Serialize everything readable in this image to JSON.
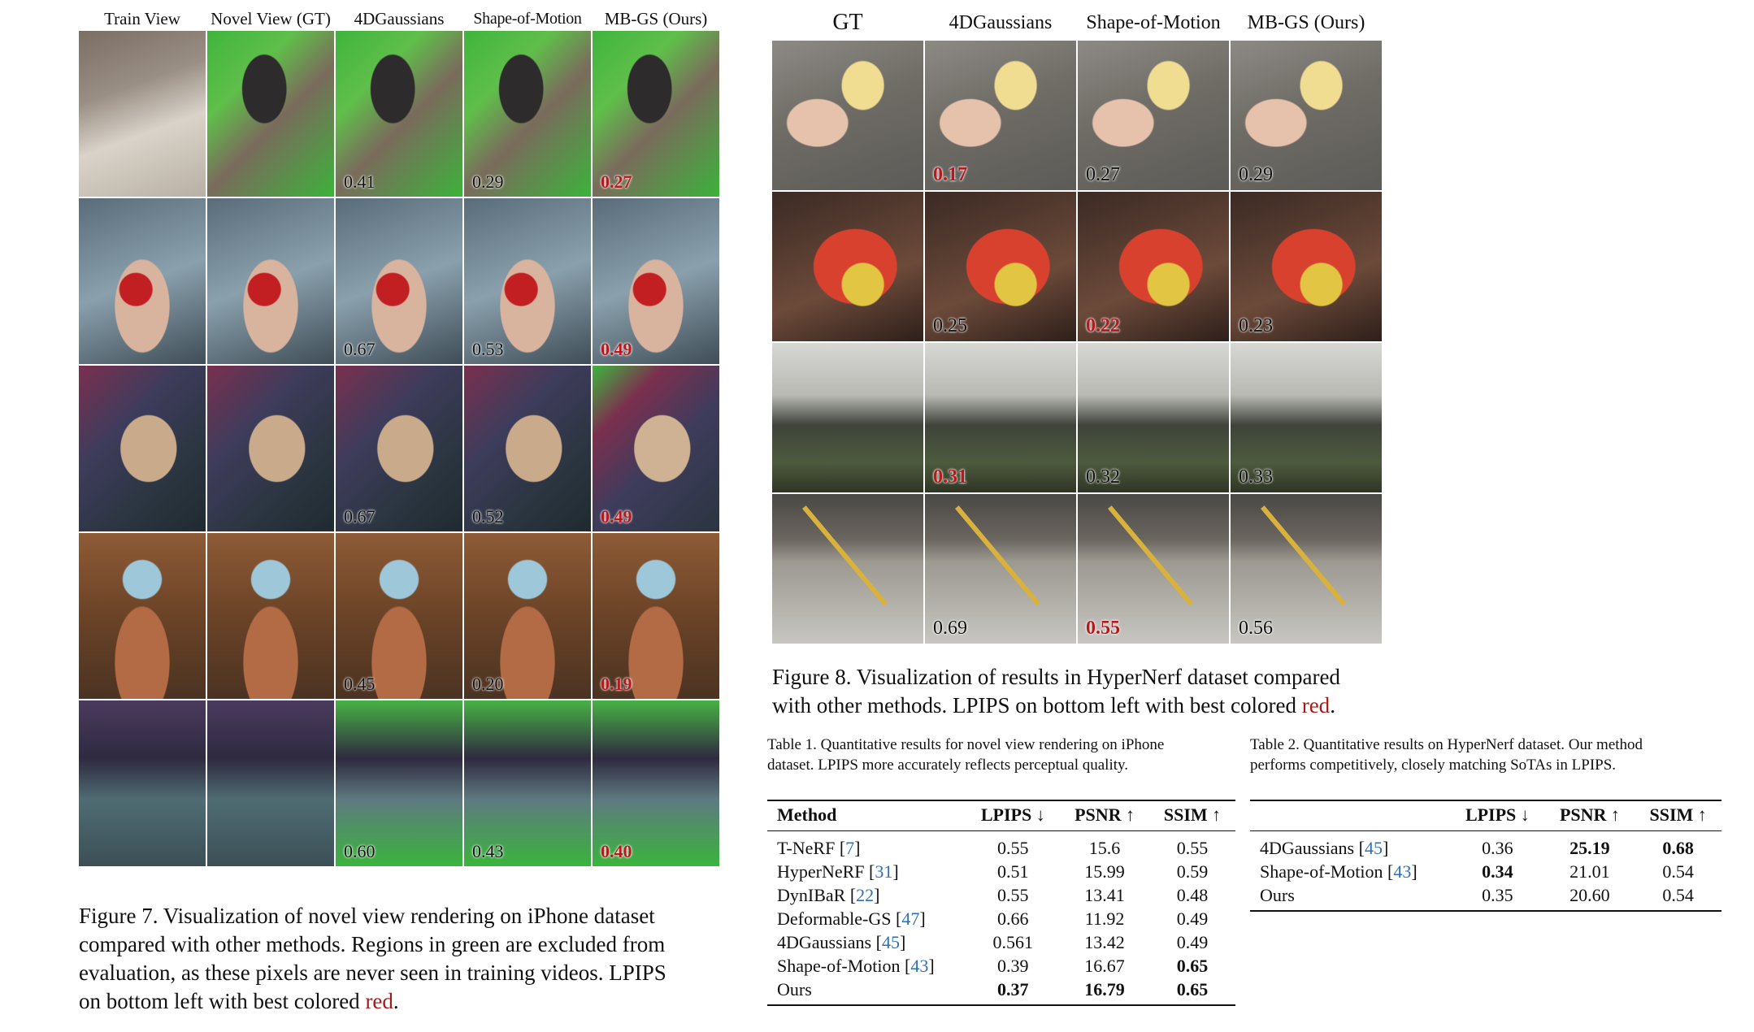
{
  "fig7": {
    "columns": [
      "Train View",
      "Novel View (GT)",
      "4DGaussians",
      "Shape-of-Motion",
      "MB-GS (Ours)"
    ],
    "rows": [
      {
        "scene": "boy",
        "lpips": [
          "0.41",
          "0.29",
          "0.27"
        ]
      },
      {
        "scene": "apple",
        "lpips": [
          "0.67",
          "0.53",
          "0.49"
        ]
      },
      {
        "scene": "bear",
        "lpips": [
          "0.67",
          "0.52",
          "0.49"
        ]
      },
      {
        "scene": "pinwheel",
        "lpips": [
          "0.45",
          "0.20",
          "0.19"
        ]
      },
      {
        "scene": "blocks",
        "lpips": [
          "0.60",
          "0.43",
          "0.40"
        ]
      }
    ],
    "caption_1": "Figure 7. Visualization of novel view rendering on iPhone dataset",
    "caption_2": "compared with other methods. Regions in green are excluded from",
    "caption_3": "evaluation, as these pixels are never seen in training videos. LPIPS",
    "caption_4": "on bottom left with best colored ",
    "caption_red": "red",
    "caption_end": "."
  },
  "fig8": {
    "columns": [
      "GT",
      "4DGaussians",
      "Shape-of-Motion",
      "MB-GS (Ours)"
    ],
    "rows": [
      {
        "scene": "banana",
        "lpips": [
          "0.17",
          "0.27",
          "0.29"
        ],
        "best": 0
      },
      {
        "scene": "peeler",
        "lpips": [
          "0.25",
          "0.22",
          "0.23"
        ],
        "best": 1
      },
      {
        "scene": "printer",
        "lpips": [
          "0.31",
          "0.32",
          "0.33"
        ],
        "best": 0
      },
      {
        "scene": "broom",
        "lpips": [
          "0.69",
          "0.55",
          "0.56"
        ],
        "best": 1
      }
    ],
    "caption_1": "Figure 8.  Visualization of results in HyperNerf dataset compared",
    "caption_2": "with other methods. LPIPS on bottom left with best colored ",
    "caption_red": "red",
    "caption_end": "."
  },
  "table1": {
    "caption_1": "Table 1.  Quantitative results for novel view rendering on iPhone",
    "caption_2": "dataset. LPIPS more accurately reflects perceptual quality.",
    "headers": [
      "Method",
      "LPIPS ↓",
      "PSNR ↑",
      "SSIM ↑"
    ],
    "rows": [
      {
        "method": "T-NeRF",
        "ref": "7",
        "lpips": "0.55",
        "psnr": "15.6",
        "ssim": "0.55"
      },
      {
        "method": "HyperNeRF",
        "ref": "31",
        "lpips": "0.51",
        "psnr": "15.99",
        "ssim": "0.59"
      },
      {
        "method": "DynIBaR",
        "ref": "22",
        "lpips": "0.55",
        "psnr": "13.41",
        "ssim": "0.48"
      },
      {
        "method": "Deformable-GS",
        "ref": "47",
        "lpips": "0.66",
        "psnr": "11.92",
        "ssim": "0.49"
      },
      {
        "method": "4DGaussians",
        "ref": "45",
        "lpips": "0.561",
        "psnr": "13.42",
        "ssim": "0.49"
      },
      {
        "method": "Shape-of-Motion",
        "ref": "43",
        "lpips": "0.39",
        "psnr": "16.67",
        "ssim": "0.65"
      },
      {
        "method": "Ours",
        "ref": "",
        "lpips": "0.37",
        "psnr": "16.79",
        "ssim": "0.65"
      }
    ]
  },
  "table2": {
    "caption_1": "Table 2.  Quantitative results on HyperNerf dataset.  Our method",
    "caption_2": "performs competitively, closely matching SoTAs in LPIPS.",
    "headers": [
      "",
      "LPIPS ↓",
      "PSNR ↑",
      "SSIM ↑"
    ],
    "rows": [
      {
        "method": "4DGaussians",
        "ref": "45",
        "lpips": "0.36",
        "psnr": "25.19",
        "ssim": "0.68"
      },
      {
        "method": "Shape-of-Motion",
        "ref": "43",
        "lpips": "0.34",
        "psnr": "21.01",
        "ssim": "0.54"
      },
      {
        "method": "Ours",
        "ref": "",
        "lpips": "0.35",
        "psnr": "20.60",
        "ssim": "0.54"
      }
    ]
  }
}
